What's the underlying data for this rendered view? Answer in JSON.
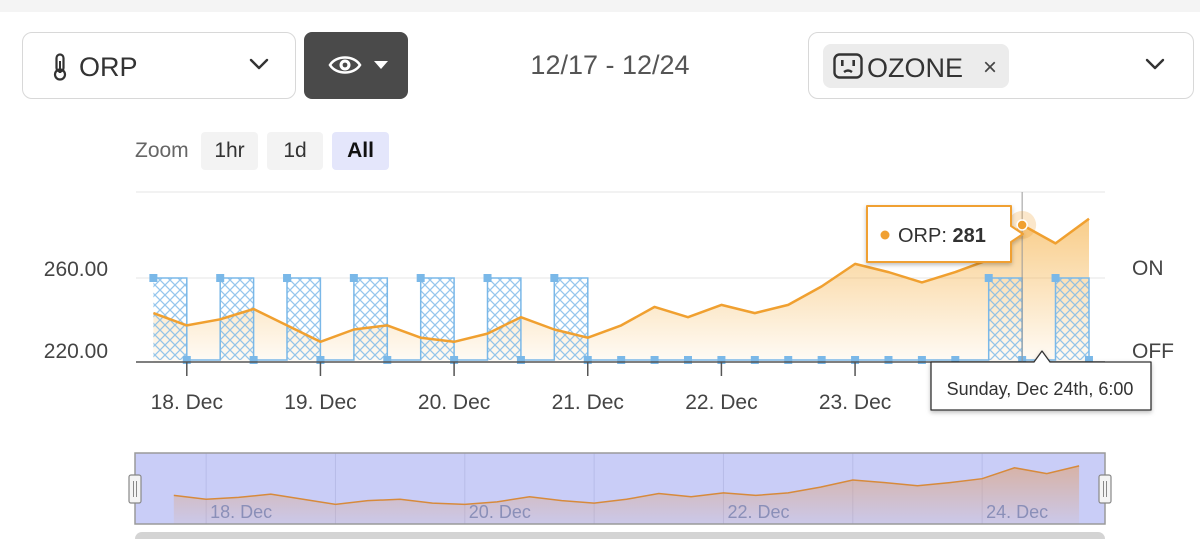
{
  "controls": {
    "parameter": {
      "label": "ORP",
      "icon": "thermometer-icon"
    },
    "view_button": {
      "icon": "eye-icon"
    },
    "date_range": "12/17 - 12/24",
    "device": {
      "tag": "OZONE",
      "icon": "outlet-icon",
      "remove": "×"
    }
  },
  "zoom": {
    "label": "Zoom",
    "options": [
      "1hr",
      "1d",
      "All"
    ],
    "selected": "All"
  },
  "colors": {
    "series": "#f0a030",
    "onoff": "#7ab8e8",
    "selector": "#c9cdf7",
    "nav_line": "#d78a3b"
  },
  "chart_data": {
    "type": "area",
    "series": [
      {
        "name": "ORP",
        "x": [
          "12/17 18:00",
          "12/18 00:00",
          "12/18 06:00",
          "12/18 12:00",
          "12/18 18:00",
          "12/19 00:00",
          "12/19 06:00",
          "12/19 12:00",
          "12/19 18:00",
          "12/20 00:00",
          "12/20 06:00",
          "12/20 12:00",
          "12/20 18:00",
          "12/21 00:00",
          "12/21 06:00",
          "12/21 12:00",
          "12/21 18:00",
          "12/22 00:00",
          "12/22 06:00",
          "12/22 12:00",
          "12/22 18:00",
          "12/23 00:00",
          "12/23 06:00",
          "12/23 12:00",
          "12/23 18:00",
          "12/24 00:00",
          "12/24 06:00",
          "12/24 12:00",
          "12/24 18:00"
        ],
        "y": [
          238,
          232,
          235,
          240,
          232,
          224,
          230,
          232,
          226,
          224,
          228,
          236,
          230,
          226,
          232,
          241,
          236,
          242,
          238,
          242,
          251,
          262,
          258,
          253,
          258,
          264,
          281,
          272,
          284
        ]
      },
      {
        "name": "ON/OFF",
        "x": [
          "12/17 18:00",
          "12/18 00:00",
          "12/18 06:00",
          "12/18 12:00",
          "12/18 18:00",
          "12/19 00:00",
          "12/19 06:00",
          "12/19 12:00",
          "12/19 18:00",
          "12/20 00:00",
          "12/20 06:00",
          "12/20 12:00",
          "12/20 18:00",
          "12/21 00:00",
          "12/21 06:00",
          "12/21 12:00",
          "12/21 18:00",
          "12/22 00:00",
          "12/22 06:00",
          "12/22 12:00",
          "12/22 18:00",
          "12/23 00:00",
          "12/23 06:00",
          "12/23 12:00",
          "12/23 18:00",
          "12/24 00:00",
          "12/24 06:00",
          "12/24 12:00",
          "12/24 18:00"
        ],
        "y": [
          "ON",
          "OFF",
          "ON",
          "OFF",
          "ON",
          "OFF",
          "ON",
          "OFF",
          "ON",
          "OFF",
          "ON",
          "OFF",
          "ON",
          "OFF",
          "OFF",
          "OFF",
          "OFF",
          "OFF",
          "OFF",
          "OFF",
          "OFF",
          "OFF",
          "OFF",
          "OFF",
          "OFF",
          "ON",
          "OFF",
          "ON",
          "OFF"
        ]
      }
    ],
    "x_ticks": [
      "18. Dec",
      "19. Dec",
      "20. Dec",
      "21. Dec",
      "22. Dec",
      "23. Dec"
    ],
    "y_ticks": [
      "260.00",
      "220.00"
    ],
    "y_right_ticks": [
      "ON",
      "OFF"
    ],
    "navigator_ticks": [
      "18. Dec",
      "20. Dec",
      "22. Dec",
      "24. Dec"
    ],
    "tooltip": {
      "series": "ORP",
      "label": "ORP: ",
      "value": "281",
      "date": "Sunday, Dec 24th, 6:00"
    },
    "grid": true
  }
}
